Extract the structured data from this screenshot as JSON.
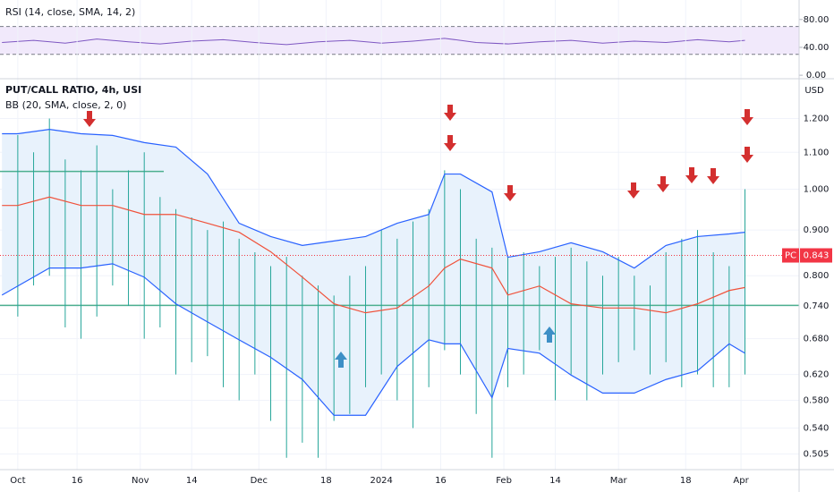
{
  "chart_data": {
    "type": "ohlc",
    "title": "PUT/CALL RATIO, 4h, USI",
    "indicator_label": "BB (20, SMA, close, 2, 0)",
    "currency": "USD",
    "log_scale": true,
    "xlim": [
      -4.5,
      197.7
    ],
    "xticks": [
      {
        "value": 0,
        "label": "Oct"
      },
      {
        "value": 15,
        "label": "16"
      },
      {
        "value": 31,
        "label": "Nov"
      },
      {
        "value": 44,
        "label": "14"
      },
      {
        "value": 61,
        "label": "Dec"
      },
      {
        "value": 78,
        "label": "18"
      },
      {
        "value": 92,
        "label": "2024"
      },
      {
        "value": 107,
        "label": "16"
      },
      {
        "value": 123,
        "label": "Feb"
      },
      {
        "value": 136,
        "label": "14"
      },
      {
        "value": 152,
        "label": "Mar"
      },
      {
        "value": 169,
        "label": "18"
      },
      {
        "value": 183,
        "label": "Apr"
      }
    ],
    "ylim": [
      0.485,
      1.33
    ],
    "yticks": [
      {
        "value": 1.2,
        "label": "1.200"
      },
      {
        "value": 1.1,
        "label": "1.100"
      },
      {
        "value": 1.0,
        "label": "1.000"
      },
      {
        "value": 0.9,
        "label": "0.900"
      },
      {
        "value": 0.8,
        "label": "0.800"
      },
      {
        "value": 0.74,
        "label": "0.740"
      },
      {
        "value": 0.68,
        "label": "0.680"
      },
      {
        "value": 0.62,
        "label": "0.620"
      },
      {
        "value": 0.58,
        "label": "0.580"
      },
      {
        "value": 0.54,
        "label": "0.540"
      },
      {
        "value": 0.505,
        "label": "0.505"
      }
    ],
    "bars": {
      "color": "#26a69a",
      "x": [
        0,
        4,
        8,
        12,
        16,
        20,
        24,
        28,
        32,
        36,
        40,
        44,
        48,
        52,
        56,
        60,
        64,
        68,
        72,
        76,
        80,
        84,
        88,
        92,
        96,
        100,
        104,
        108,
        112,
        116,
        120,
        124,
        128,
        132,
        136,
        140,
        144,
        148,
        152,
        156,
        160,
        164,
        168,
        172,
        176,
        180,
        184
      ],
      "high": [
        1.15,
        1.1,
        1.2,
        1.08,
        1.05,
        1.12,
        1.0,
        1.05,
        1.1,
        0.98,
        0.95,
        0.93,
        0.9,
        0.92,
        0.88,
        0.85,
        0.82,
        0.84,
        0.8,
        0.78,
        0.76,
        0.8,
        0.82,
        0.9,
        0.88,
        0.92,
        0.95,
        1.05,
        1.0,
        0.88,
        0.86,
        0.84,
        0.85,
        0.82,
        0.84,
        0.86,
        0.83,
        0.8,
        0.84,
        0.8,
        0.78,
        0.85,
        0.88,
        0.9,
        0.85,
        0.82,
        1.0
      ],
      "low": [
        0.72,
        0.78,
        0.8,
        0.7,
        0.68,
        0.72,
        0.78,
        0.74,
        0.68,
        0.7,
        0.62,
        0.64,
        0.65,
        0.6,
        0.58,
        0.62,
        0.55,
        0.5,
        0.52,
        0.5,
        0.55,
        0.56,
        0.6,
        0.62,
        0.58,
        0.54,
        0.6,
        0.66,
        0.62,
        0.56,
        0.5,
        0.6,
        0.62,
        0.66,
        0.58,
        0.62,
        0.58,
        0.62,
        0.64,
        0.66,
        0.62,
        0.64,
        0.6,
        0.62,
        0.6,
        0.6,
        0.62
      ]
    },
    "bands": {
      "x": [
        -4,
        0,
        8,
        16,
        24,
        32,
        40,
        48,
        56,
        64,
        72,
        80,
        88,
        96,
        104,
        108,
        112,
        120,
        124,
        132,
        140,
        148,
        156,
        164,
        172,
        180,
        184
      ],
      "fill": "#e8f2fc",
      "upper": {
        "color": "#2962ff",
        "values": [
          1.154,
          1.154,
          1.167,
          1.154,
          1.149,
          1.128,
          1.115,
          1.04,
          0.916,
          0.885,
          0.865,
          0.875,
          0.885,
          0.916,
          0.937,
          1.04,
          1.04,
          0.993,
          0.839,
          0.851,
          0.871,
          0.851,
          0.816,
          0.865,
          0.885,
          0.891,
          0.895
        ]
      },
      "middle": {
        "color": "#f0513a",
        "values": [
          0.959,
          0.959,
          0.98,
          0.959,
          0.959,
          0.937,
          0.937,
          0.916,
          0.895,
          0.851,
          0.797,
          0.744,
          0.727,
          0.736,
          0.779,
          0.816,
          0.835,
          0.816,
          0.761,
          0.779,
          0.744,
          0.736,
          0.736,
          0.727,
          0.744,
          0.77,
          0.776
        ]
      },
      "lower": {
        "color": "#2962ff",
        "values": [
          0.761,
          0.779,
          0.816,
          0.816,
          0.825,
          0.797,
          0.744,
          0.71,
          0.678,
          0.648,
          0.612,
          0.558,
          0.558,
          0.633,
          0.678,
          0.671,
          0.671,
          0.584,
          0.663,
          0.655,
          0.619,
          0.591,
          0.591,
          0.612,
          0.626,
          0.671,
          0.655
        ]
      }
    },
    "hlines": {
      "color": "#4caf8f",
      "values": [
        1.047,
        0.741
      ]
    },
    "last_value": {
      "label": "PC",
      "value": 0.843,
      "color": "#f23645"
    },
    "rsi": {
      "title": "RSI (14, close, SMA, 14, 2)",
      "ylim": [
        -5,
        108
      ],
      "yticks": [
        {
          "value": 80,
          "label": "80.00"
        },
        {
          "value": 40,
          "label": "40.00"
        },
        {
          "value": 0,
          "label": "0.00"
        }
      ],
      "band": [
        30,
        70
      ],
      "color": "#7e57c2",
      "x": [
        -4,
        4,
        12,
        20,
        28,
        36,
        44,
        52,
        60,
        68,
        76,
        84,
        92,
        100,
        108,
        116,
        124,
        132,
        140,
        148,
        156,
        164,
        172,
        180,
        184
      ],
      "values": [
        47,
        50,
        46,
        52,
        48,
        45,
        49,
        51,
        47,
        44,
        48,
        50,
        46,
        49,
        53,
        47,
        45,
        48,
        50,
        46,
        49,
        47,
        51,
        48,
        50
      ]
    }
  }
}
